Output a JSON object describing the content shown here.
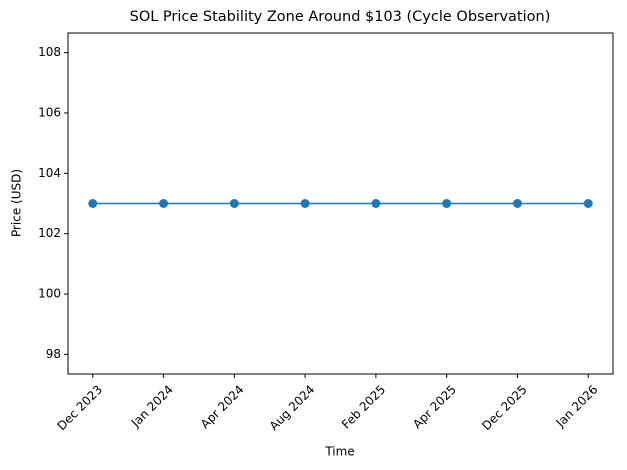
{
  "chart_data": {
    "type": "line",
    "title": "SOL Price Stability Zone Around $103 (Cycle Observation)",
    "x_label": "Time",
    "y_label": "Price (USD)",
    "categories": [
      "Dec 2023",
      "Jan 2024",
      "Apr 2024",
      "Aug 2024",
      "Feb 2025",
      "Apr 2025",
      "Dec 2025",
      "Jan 2026"
    ],
    "series": [
      {
        "name": "SOL",
        "color": "#1f77b4",
        "values": [
          103,
          103,
          103,
          103,
          103,
          103,
          103,
          103
        ]
      }
    ],
    "ylim": [
      97.35,
      108.65
    ],
    "yticks": [
      98,
      100,
      102,
      104,
      106,
      108
    ],
    "grid": false
  }
}
